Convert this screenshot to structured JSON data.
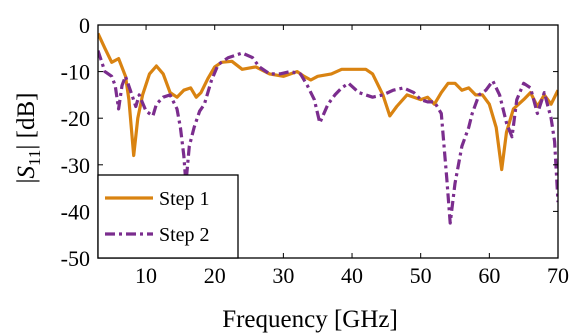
{
  "chart_data": {
    "type": "line",
    "xlabel": "Frequency [GHz]",
    "ylabel": "|S₁₁| [dB]",
    "ylabel_parts": {
      "pre": "|",
      "sym": "S",
      "sub": "11",
      "post": "| [dB]"
    },
    "xlim": [
      3,
      70
    ],
    "ylim": [
      -50,
      0
    ],
    "xticks": [
      10,
      20,
      30,
      40,
      50,
      60,
      70
    ],
    "yticks": [
      0,
      -10,
      -20,
      -30,
      -40,
      -50
    ],
    "legend_position": "bottom-left",
    "grid": false,
    "series": [
      {
        "name": "Step 1",
        "color": "#d98311",
        "style": "solid",
        "points": [
          [
            3,
            -1.8
          ],
          [
            4,
            -5
          ],
          [
            5,
            -8
          ],
          [
            6,
            -7.2
          ],
          [
            7,
            -11
          ],
          [
            7.5,
            -16
          ],
          [
            8.2,
            -28
          ],
          [
            8.8,
            -20
          ],
          [
            9.5,
            -15
          ],
          [
            10.5,
            -10.5
          ],
          [
            11.5,
            -8.8
          ],
          [
            12.5,
            -10.5
          ],
          [
            13.5,
            -14.5
          ],
          [
            14.5,
            -15.5
          ],
          [
            15.5,
            -14
          ],
          [
            16.5,
            -13.5
          ],
          [
            17.3,
            -15.5
          ],
          [
            18,
            -14.5
          ],
          [
            19,
            -11.5
          ],
          [
            20,
            -9
          ],
          [
            21,
            -8
          ],
          [
            22.5,
            -7.8
          ],
          [
            24,
            -9.5
          ],
          [
            26,
            -9
          ],
          [
            28,
            -10.5
          ],
          [
            30,
            -11
          ],
          [
            32,
            -10
          ],
          [
            33,
            -11
          ],
          [
            34,
            -11.8
          ],
          [
            35,
            -11
          ],
          [
            37,
            -10.5
          ],
          [
            38.5,
            -9.5
          ],
          [
            40,
            -9.5
          ],
          [
            42,
            -9.5
          ],
          [
            43,
            -10.5
          ],
          [
            44.5,
            -15
          ],
          [
            45.5,
            -19.5
          ],
          [
            46.5,
            -17.5
          ],
          [
            48,
            -15
          ],
          [
            50,
            -16
          ],
          [
            51,
            -15.5
          ],
          [
            52,
            -17
          ],
          [
            53,
            -14.5
          ],
          [
            54,
            -12.5
          ],
          [
            55,
            -12.5
          ],
          [
            56,
            -14
          ],
          [
            57,
            -13.5
          ],
          [
            58,
            -15
          ],
          [
            59,
            -15
          ],
          [
            60,
            -17
          ],
          [
            61,
            -22
          ],
          [
            61.8,
            -31
          ],
          [
            62.5,
            -23
          ],
          [
            63.5,
            -18
          ],
          [
            65,
            -16
          ],
          [
            66,
            -14.5
          ],
          [
            67,
            -17.5
          ],
          [
            68,
            -15
          ],
          [
            69,
            -17
          ],
          [
            70,
            -14
          ]
        ]
      },
      {
        "name": "Step 2",
        "color": "#7b2d8e",
        "style": "dashdot",
        "points": [
          [
            3,
            -5.5
          ],
          [
            4,
            -10
          ],
          [
            5,
            -11
          ],
          [
            5.5,
            -13
          ],
          [
            6,
            -18
          ],
          [
            6.5,
            -13
          ],
          [
            7,
            -11
          ],
          [
            7.7,
            -14
          ],
          [
            8.5,
            -17.5
          ],
          [
            9,
            -15
          ],
          [
            10,
            -18.5
          ],
          [
            11,
            -19.5
          ],
          [
            11.5,
            -17
          ],
          [
            12.5,
            -15.5
          ],
          [
            13.5,
            -15
          ],
          [
            14.5,
            -18
          ],
          [
            15,
            -22
          ],
          [
            15.5,
            -28
          ],
          [
            15.8,
            -34
          ],
          [
            16.3,
            -26
          ],
          [
            17,
            -22
          ],
          [
            17.8,
            -18.5
          ],
          [
            18.5,
            -17
          ],
          [
            19.5,
            -12
          ],
          [
            20.5,
            -8.5
          ],
          [
            22,
            -7
          ],
          [
            23,
            -6.5
          ],
          [
            24,
            -6
          ],
          [
            25.5,
            -7
          ],
          [
            26.5,
            -9
          ],
          [
            28,
            -10.5
          ],
          [
            29.5,
            -10.5
          ],
          [
            31,
            -10
          ],
          [
            32.5,
            -10.5
          ],
          [
            33.5,
            -13
          ],
          [
            34.5,
            -16
          ],
          [
            35.3,
            -21
          ],
          [
            36.5,
            -17
          ],
          [
            37.5,
            -15
          ],
          [
            38.5,
            -13.5
          ],
          [
            39.5,
            -12.5
          ],
          [
            41,
            -14.5
          ],
          [
            43,
            -15.5
          ],
          [
            44.5,
            -15
          ],
          [
            46,
            -14
          ],
          [
            47.5,
            -13.5
          ],
          [
            49,
            -14.5
          ],
          [
            50,
            -16
          ],
          [
            51,
            -16.5
          ],
          [
            52,
            -16.5
          ],
          [
            53,
            -19
          ],
          [
            53.8,
            -33
          ],
          [
            54.3,
            -42.5
          ],
          [
            55,
            -34
          ],
          [
            56,
            -26
          ],
          [
            57,
            -22
          ],
          [
            57.5,
            -19
          ],
          [
            58.5,
            -15
          ],
          [
            59.5,
            -14
          ],
          [
            60.5,
            -12
          ],
          [
            61.5,
            -15
          ],
          [
            62.5,
            -21
          ],
          [
            63.3,
            -24
          ],
          [
            64,
            -16
          ],
          [
            65,
            -12.5
          ],
          [
            66,
            -13.5
          ],
          [
            67,
            -19
          ],
          [
            68,
            -14.5
          ],
          [
            69,
            -20
          ],
          [
            69.5,
            -25
          ],
          [
            70,
            -38
          ]
        ]
      }
    ]
  }
}
